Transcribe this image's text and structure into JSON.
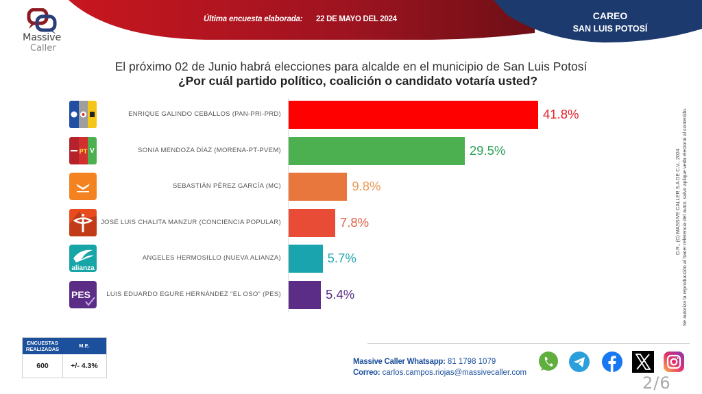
{
  "header": {
    "brand_line1": "Massive",
    "brand_line2": "Caller",
    "survey_label": "Última encuesta elaborada:",
    "survey_date": "22 DE MAYO DEL 2024",
    "section_title": "CAREO",
    "section_subtitle": "SAN LUIS POTOSÍ",
    "colors": {
      "red_band": "#b3121f",
      "blue_band": "#1c3a6e"
    }
  },
  "chart_data": {
    "type": "bar",
    "orientation": "horizontal",
    "title": "El próximo 02 de Junio habrá elecciones para alcalde en el municipio de San Luis Potosí",
    "subtitle": "¿Por cuál partido político, coalición o candidato votaría usted?",
    "xlabel": "",
    "ylabel": "",
    "xlim": [
      0,
      50
    ],
    "grid": false,
    "legend": "none",
    "unit": "%",
    "categories": [
      "ENRIQUE GALINDO CEBALLOS (PAN-PRI-PRD)",
      "SONIA MENDOZA DÍAZ (MORENA-PT-PVEM)",
      "SEBASTIÁN PÉREZ GARCÍA (MC)",
      "JOSÉ LUIS CHALITA MANZUR (CONCIENCIA POPULAR)",
      "ANGELES HERMOSILLO (NUEVA ALIANZA)",
      "LUIS EDUARDO EGURE HERNÁNDEZ \"EL OSO\" (PES)"
    ],
    "values": [
      41.8,
      29.5,
      9.8,
      7.8,
      5.7,
      5.4
    ],
    "data_labels": [
      "41.8%",
      "29.5%",
      "9.8%",
      "7.8%",
      "5.7%",
      "5.4%"
    ],
    "bar_colors": [
      "#ff0000",
      "#4caf50",
      "#e8773d",
      "#e84c36",
      "#1aa5ae",
      "#5b2d86"
    ],
    "label_colors": [
      "#e0202a",
      "#2ea05a",
      "#e89a55",
      "#e06048",
      "#22a8b0",
      "#5b2d86"
    ],
    "party_logos": [
      {
        "name": "pan-pri-prd-logo",
        "text": [
          "PAN",
          "PRI",
          "PRD"
        ],
        "colors": [
          "#1f4ea3",
          "#9e9e9e",
          "#f5c518"
        ]
      },
      {
        "name": "morena-pt-pvem-logo",
        "text": [
          "morena",
          "PT",
          "V"
        ],
        "colors": [
          "#b5222b",
          "#d32f2f",
          "#4caf50"
        ]
      },
      {
        "name": "mc-logo",
        "text": [
          "MOVIMIENTO CIUDADANO"
        ],
        "colors": [
          "#f58220"
        ]
      },
      {
        "name": "conciencia-popular-logo",
        "text": [
          "CP"
        ],
        "colors": [
          "#e84c1e"
        ]
      },
      {
        "name": "nueva-alianza-logo",
        "text": [
          "alianza"
        ],
        "colors": [
          "#18a5a7"
        ]
      },
      {
        "name": "pes-logo",
        "text": [
          "PES"
        ],
        "colors": [
          "#5b2d86"
        ]
      }
    ]
  },
  "legal": {
    "line1": "D.R., (C) MASSIVE CALLER S.A DE C.V., 2024",
    "line2": "Se autoriza la reproducción al hacer referencia del autor, salvo aplique veda electoral al contenido."
  },
  "stats": {
    "col1_header_line1": "ENCUESTAS",
    "col1_header_line2": "REALIZADAS",
    "col2_header": "M.E.",
    "surveys": "600",
    "margin_of_error": "+/- 4.3%"
  },
  "footer": {
    "whatsapp_label": "Massive Caller Whatsapp:",
    "whatsapp_number": "81 1798  1079",
    "email_label": "Correo:",
    "email": "carlos.campos.riojas@massivecaller.com",
    "social_icons": [
      "whatsapp-icon",
      "telegram-icon",
      "facebook-icon",
      "x-icon",
      "instagram-icon"
    ],
    "page_indicator": "2/6"
  }
}
